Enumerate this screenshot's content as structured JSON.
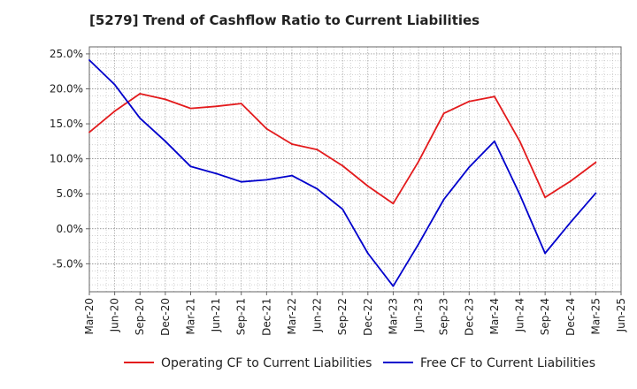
{
  "chart_data": {
    "type": "line",
    "title": "[5279]  Trend of Cashflow Ratio to Current Liabilities",
    "xlabel": "",
    "ylabel": "",
    "categories": [
      "Mar-20",
      "Jun-20",
      "Sep-20",
      "Dec-20",
      "Mar-21",
      "Jun-21",
      "Sep-21",
      "Dec-21",
      "Mar-22",
      "Jun-22",
      "Sep-22",
      "Dec-22",
      "Mar-23",
      "Jun-23",
      "Sep-23",
      "Dec-23",
      "Mar-24",
      "Jun-24",
      "Sep-24",
      "Dec-24",
      "Mar-25",
      "Jun-25"
    ],
    "ylim": [
      -9.0,
      26.0
    ],
    "yticks": [
      25.0,
      20.0,
      15.0,
      10.0,
      5.0,
      0.0,
      -5.0
    ],
    "ytick_labels": [
      "25.0%",
      "20.0%",
      "15.0%",
      "10.0%",
      "5.0%",
      "0.0%",
      "-5.0%"
    ],
    "grid": true,
    "legend_position": "bottom",
    "series": [
      {
        "name": "Operating CF to Current Liabilities",
        "color": "#e31a1c",
        "values": [
          13.8,
          16.8,
          19.3,
          18.5,
          17.2,
          17.5,
          17.9,
          14.3,
          12.1,
          11.3,
          9.0,
          6.1,
          3.6,
          9.6,
          16.5,
          18.2,
          18.9,
          12.5,
          4.5,
          6.8,
          9.5,
          null
        ]
      },
      {
        "name": "Free CF to Current Liabilities",
        "color": "#0000cc",
        "values": [
          24.1,
          20.6,
          15.8,
          12.5,
          8.9,
          7.9,
          6.7,
          7.0,
          7.6,
          5.7,
          2.8,
          -3.5,
          -8.2,
          -2.2,
          4.2,
          8.8,
          12.5,
          4.9,
          -3.5,
          0.9,
          5.1,
          null
        ]
      }
    ]
  }
}
